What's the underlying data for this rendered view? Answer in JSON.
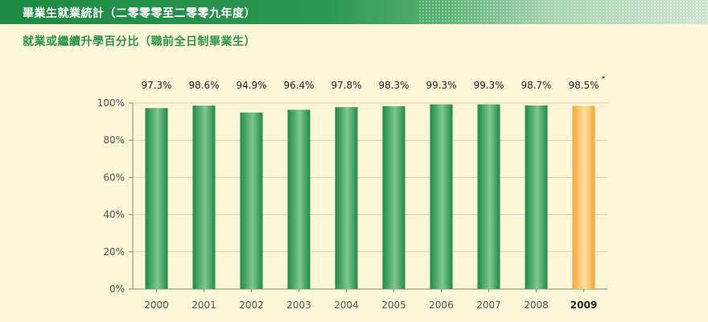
{
  "header": {
    "title": "畢業生就業統計（二零零零至二零零九年度）"
  },
  "subtitle": "就業或繼續升學百分比（職前全日制畢業生）",
  "colors": {
    "bar_green": "#2e9a52",
    "bar_orange": "#f5b445",
    "header_green": "#1d8a44",
    "background": "#fcf7d8"
  },
  "chart_data": {
    "type": "bar",
    "categories": [
      "2000",
      "2001",
      "2002",
      "2003",
      "2004",
      "2005",
      "2006",
      "2007",
      "2008",
      "2009"
    ],
    "values": [
      97.3,
      98.6,
      94.9,
      96.4,
      97.8,
      98.3,
      99.3,
      99.3,
      98.7,
      98.5
    ],
    "data_labels": [
      "97.3%",
      "98.6%",
      "94.9%",
      "96.4%",
      "97.8%",
      "98.3%",
      "99.3%",
      "99.3%",
      "98.7%",
      "98.5%"
    ],
    "highlight_index": 9,
    "highlight_marker": "*",
    "y_ticks": [
      0,
      20,
      40,
      60,
      80,
      100
    ],
    "y_tick_labels": [
      "0%",
      "20%",
      "40%",
      "60%",
      "80%",
      "100%"
    ],
    "ylim": [
      0,
      100
    ],
    "xlabel": "",
    "ylabel": "",
    "grid": true
  }
}
